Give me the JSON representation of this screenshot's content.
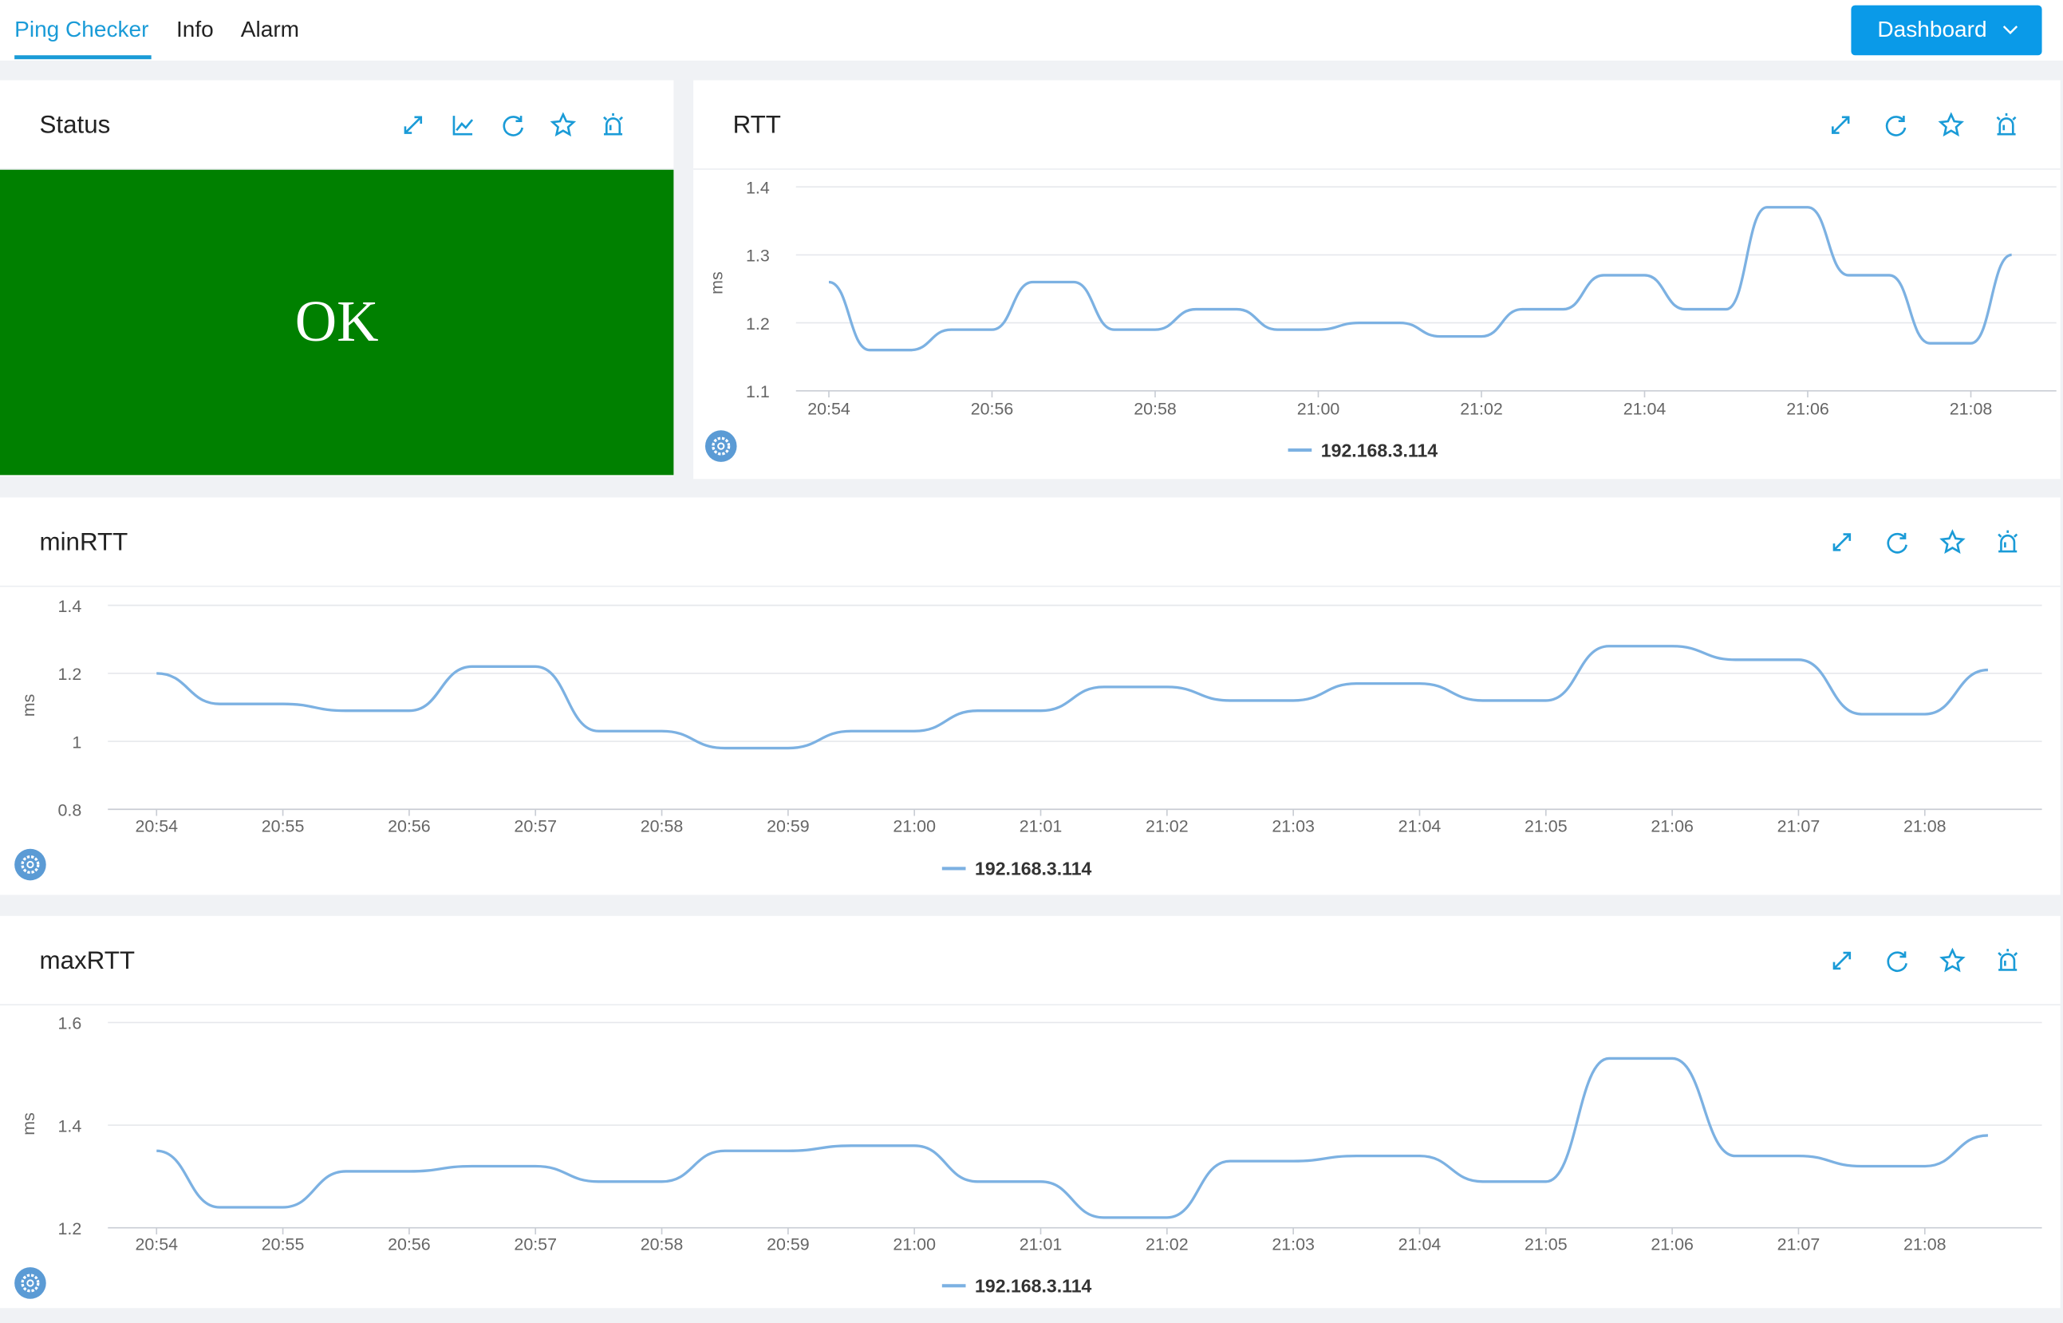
{
  "nav": {
    "tabs": [
      "Ping Checker",
      "Info",
      "Alarm"
    ],
    "button": "Dashboard"
  },
  "status_panel": {
    "title": "Status",
    "status": "OK"
  },
  "chart_data": [
    {
      "type": "line",
      "title": "RTT",
      "y_label": "ms",
      "categories": [
        "20:54",
        null,
        null,
        null,
        "20:56",
        null,
        null,
        null,
        "20:58",
        null,
        null,
        null,
        "21:00",
        null,
        null,
        null,
        "21:02",
        null,
        null,
        null,
        "21:04",
        null,
        null,
        null,
        "21:06",
        null,
        null,
        null,
        "21:08",
        null
      ],
      "series": [
        {
          "name": "192.168.3.114",
          "color": "#7cb1e2",
          "values": [
            1.26,
            1.16,
            1.16,
            1.19,
            1.19,
            1.26,
            1.26,
            1.19,
            1.19,
            1.22,
            1.22,
            1.19,
            1.19,
            1.2,
            1.2,
            1.18,
            1.18,
            1.22,
            1.22,
            1.27,
            1.27,
            1.22,
            1.22,
            1.37,
            1.37,
            1.27,
            1.27,
            1.17,
            1.17,
            1.3
          ]
        }
      ],
      "ylim": [
        1.1,
        1.4
      ],
      "yticks": [
        1.1,
        1.2,
        1.3,
        1.4
      ],
      "grid": true
    },
    {
      "type": "line",
      "title": "minRTT",
      "y_label": "ms",
      "categories": [
        "20:54",
        null,
        "20:55",
        null,
        "20:56",
        null,
        "20:57",
        null,
        "20:58",
        null,
        "20:59",
        null,
        "21:00",
        null,
        "21:01",
        null,
        "21:02",
        null,
        "21:03",
        null,
        "21:04",
        null,
        "21:05",
        null,
        "21:06",
        null,
        "21:07",
        null,
        "21:08",
        null
      ],
      "series": [
        {
          "name": "192.168.3.114",
          "color": "#7cb1e2",
          "values": [
            1.2,
            1.11,
            1.11,
            1.09,
            1.09,
            1.22,
            1.22,
            1.03,
            1.03,
            0.98,
            0.98,
            1.03,
            1.03,
            1.09,
            1.09,
            1.16,
            1.16,
            1.12,
            1.12,
            1.17,
            1.17,
            1.12,
            1.12,
            1.28,
            1.28,
            1.24,
            1.24,
            1.08,
            1.08,
            1.21
          ]
        }
      ],
      "ylim": [
        0.8,
        1.4
      ],
      "yticks": [
        0.8,
        1,
        1.2,
        1.4
      ],
      "grid": true
    },
    {
      "type": "line",
      "title": "maxRTT",
      "y_label": "ms",
      "categories": [
        "20:54",
        null,
        "20:55",
        null,
        "20:56",
        null,
        "20:57",
        null,
        "20:58",
        null,
        "20:59",
        null,
        "21:00",
        null,
        "21:01",
        null,
        "21:02",
        null,
        "21:03",
        null,
        "21:04",
        null,
        "21:05",
        null,
        "21:06",
        null,
        "21:07",
        null,
        "21:08",
        null
      ],
      "series": [
        {
          "name": "192.168.3.114",
          "color": "#7cb1e2",
          "values": [
            1.35,
            1.24,
            1.24,
            1.31,
            1.31,
            1.32,
            1.32,
            1.29,
            1.29,
            1.35,
            1.35,
            1.36,
            1.36,
            1.29,
            1.29,
            1.22,
            1.22,
            1.33,
            1.33,
            1.34,
            1.34,
            1.29,
            1.29,
            1.53,
            1.53,
            1.34,
            1.34,
            1.32,
            1.32,
            1.38
          ]
        }
      ],
      "ylim": [
        1.2,
        1.6
      ],
      "yticks": [
        1.2,
        1.4,
        1.6
      ],
      "grid": true
    }
  ]
}
